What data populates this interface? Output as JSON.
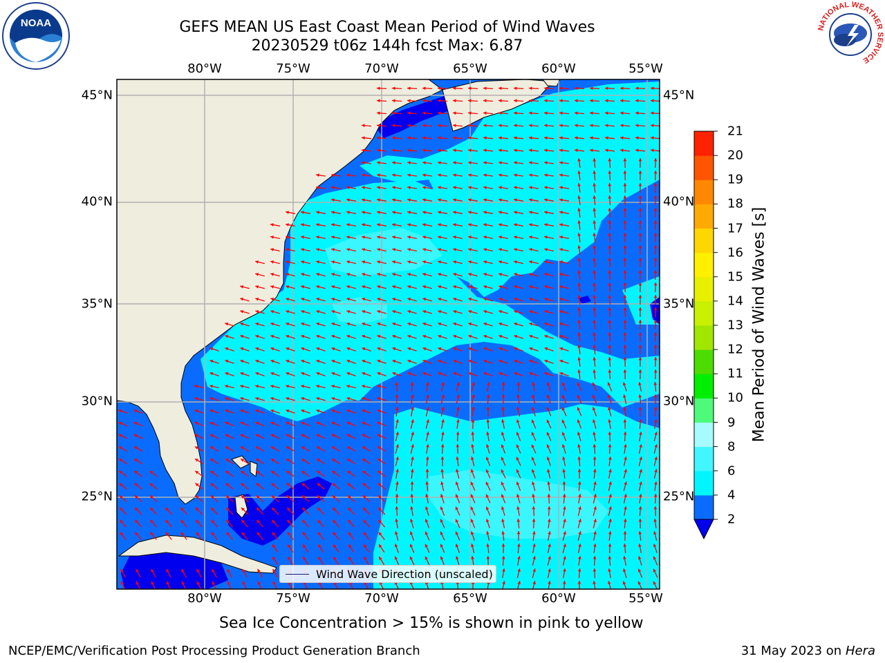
{
  "title_line1": "GEFS MEAN US East Coast Mean Period of Wind Waves",
  "title_line2": "20230529 t06z 144h fcst   Max: 6.87",
  "lon_ticks": [
    "80°W",
    "75°W",
    "70°W",
    "65°W",
    "60°W",
    "55°W"
  ],
  "lat_ticks": [
    "45°N",
    "40°N",
    "35°N",
    "30°N",
    "25°N"
  ],
  "colorbar": {
    "label": "Mean Period of Wind Waves [s]",
    "ticks": [
      "2",
      "4",
      "6",
      "8",
      "9",
      "10",
      "11",
      "12",
      "13",
      "14",
      "15",
      "16",
      "17",
      "18",
      "19",
      "20",
      "21"
    ],
    "colors": [
      "#0a6cff",
      "#00f6ff",
      "#40f6ff",
      "#a6fbff",
      "#4dfa7a",
      "#00ef00",
      "#4cdc00",
      "#a0e600",
      "#c8f000",
      "#e6f000",
      "#fff000",
      "#ffd700",
      "#ffaa00",
      "#ff8800",
      "#ff5500",
      "#ff2200"
    ],
    "under_color": "#0000ee"
  },
  "legend_label": "Wind Wave Direction (unscaled)",
  "note": "Sea Ice Concentration > 15% is shown in pink to yellow",
  "footer_left": "NCEP/EMC/Verification Post Processing Product Generation Branch",
  "footer_date": "31 May 2023 on",
  "footer_machine": "Hera",
  "logos": {
    "noaa": "NOAA",
    "nws_ring": "NATIONAL WEATHER SERVICE"
  },
  "map_colors": {
    "land": "#efedde",
    "field_2_4": "#0a6cff",
    "field_4_6": "#00f6ff",
    "field_6_8": "#40f6ff",
    "under": "#0000ee",
    "arrow": "#ff0000",
    "grid": "#b0b0b0"
  }
}
